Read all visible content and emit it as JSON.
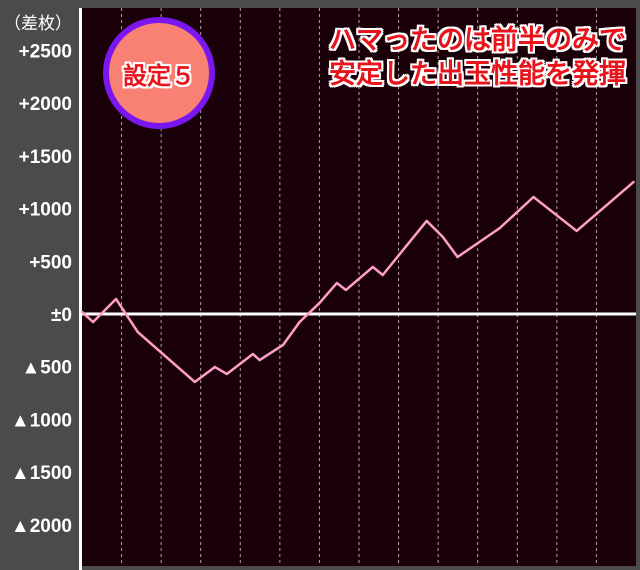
{
  "chart_data": {
    "type": "line",
    "title": "",
    "ylabel": "（差枚）",
    "xlabel": "",
    "ylim": [
      -2400,
      2900
    ],
    "xlim": [
      0,
      14
    ],
    "y_ticks": [
      2500,
      2000,
      1500,
      1000,
      500,
      0,
      -500,
      -1000,
      -1500,
      -2000
    ],
    "y_tick_labels": [
      "+2500",
      "+2000",
      "+1500",
      "+1000",
      "+500",
      "±0",
      "▲500",
      "▲1000",
      "▲1500",
      "▲2000"
    ],
    "x_gridlines": 14,
    "grid": {
      "x": "dashed vertical",
      "y": false
    },
    "zero_line": true,
    "series": [
      {
        "color": "#ff9ec8",
        "x": [
          0,
          0.28,
          0.86,
          1.41,
          2.85,
          3.36,
          3.66,
          4.32,
          4.49,
          5.08,
          5.5,
          6.0,
          6.44,
          6.67,
          7.35,
          7.6,
          8.71,
          9.12,
          9.49,
          10.56,
          11.41,
          12.5,
          13.94
        ],
        "y": [
          20,
          -76,
          142,
          -171,
          -645,
          -503,
          -569,
          -380,
          -437,
          -294,
          -76,
          104,
          294,
          228,
          446,
          370,
          883,
          731,
          541,
          816,
          1110,
          788,
          1253
        ]
      }
    ]
  },
  "badge": {
    "label": "設定５"
  },
  "headline": {
    "line1": "ハマったのは前半のみで",
    "line2": "安定した出玉性能を発揮"
  },
  "colors": {
    "plot_bg": "#1a0008",
    "panel_bg": "#4b4b4b",
    "line": "#ff9ec8",
    "badge_fill": "#f98174",
    "badge_ring": "#7a17f0",
    "headline_text": "#e8141c"
  }
}
